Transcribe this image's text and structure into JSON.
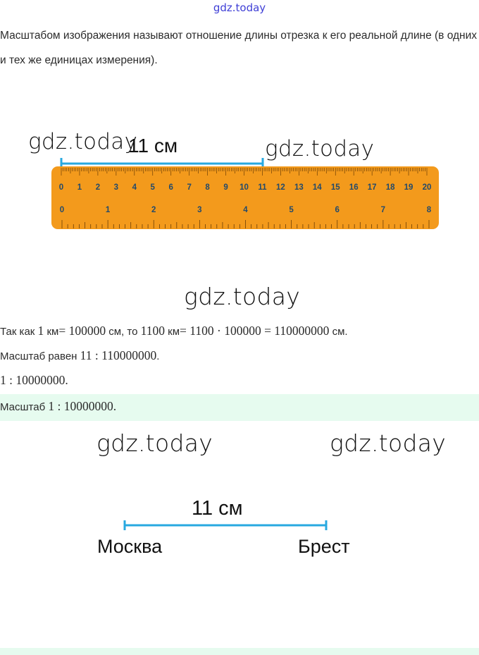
{
  "header": {
    "site_link": "gdz.today"
  },
  "definition": "Масштабом изображения называют отношение длины отрезка к его реальной длине (в одних и тех же единицах измерения).",
  "figure1": {
    "segment_label": "11 см",
    "ruler_top_ticks": [
      "0",
      "1",
      "2",
      "3",
      "4",
      "5",
      "6",
      "7",
      "8",
      "9",
      "10",
      "11",
      "12",
      "13",
      "14",
      "15",
      "16",
      "17",
      "18",
      "19",
      "20"
    ],
    "ruler_bottom_ticks": [
      "0",
      "1",
      "2",
      "3",
      "4",
      "5",
      "6",
      "7",
      "8"
    ],
    "ruler_color": "#f39a1c",
    "segment_color": "#28a9e0"
  },
  "watermarks": {
    "wm1": "gdz.today",
    "wm2": "gdz.today",
    "wm3": "gdz.today",
    "wm4": "gdz.today",
    "wm5": "gdz.today"
  },
  "solution": {
    "line1": {
      "t1": "Так как ",
      "m1": "1",
      "t2": " км",
      "m2": "= 100000",
      "t3": " см, то ",
      "m3": "1100",
      "t4": " км",
      "m4": "= 1100 · 100000 = 110000000",
      "t5": " см."
    },
    "line2": {
      "t1": "Масштаб равен ",
      "m1": "11 : 110000000",
      "t2": "."
    },
    "line3": {
      "m1": "1 : 10000000",
      "t1": "."
    },
    "answer": {
      "t1": "Масштаб ",
      "m1": "1 : 10000000",
      "t2": "."
    }
  },
  "figure2": {
    "segment_label": "11 см",
    "left_city": "Москва",
    "right_city": "Брест",
    "segment_color": "#28a9e0"
  }
}
